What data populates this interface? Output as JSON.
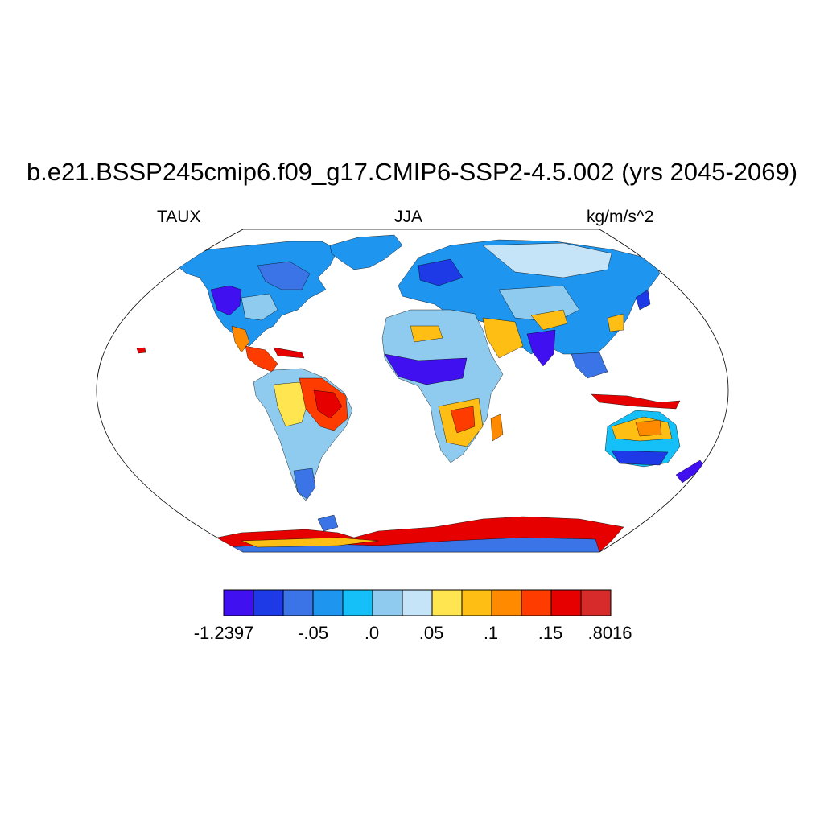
{
  "title": "b.e21.BSSP245cmip6.f09_g17.CMIP6-SSP2-4.5.002 (yrs 2045-2069)",
  "variable": "TAUX",
  "season": "JJA",
  "units": "kg/m/s^2",
  "colorbar": {
    "colors": [
      "#4010f0",
      "#1e3ae6",
      "#3a74e6",
      "#1e96f0",
      "#14c0f7",
      "#8ecbef",
      "#c6e4f7",
      "#ffe650",
      "#ffbe14",
      "#ff8a00",
      "#ff3c00",
      "#e60000",
      "#d72a2a"
    ],
    "labels": [
      "-1.2397",
      "-.05",
      ".0",
      ".05",
      ".1",
      ".15",
      ".8016"
    ]
  },
  "palette": {
    "deep_blue": "#4010f0",
    "blue": "#1e3ae6",
    "mid_blue": "#3a74e6",
    "sky": "#1e96f0",
    "cyan": "#14c0f7",
    "light_blue": "#8ecbef",
    "pale": "#c6e4f7",
    "yellow": "#ffe650",
    "gold": "#ffbe14",
    "orange": "#ff8a00",
    "red_orange": "#ff3c00",
    "red": "#e60000",
    "dark_red": "#d72a2a"
  }
}
